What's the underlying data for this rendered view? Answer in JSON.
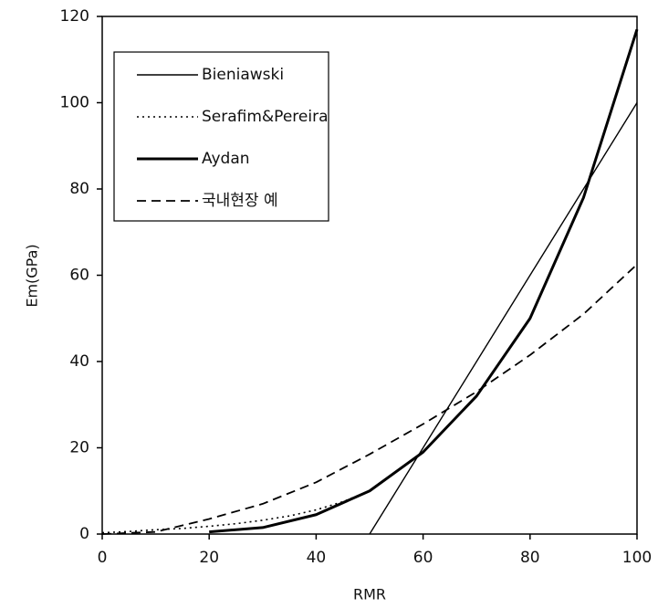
{
  "chart_data": {
    "type": "line",
    "xlabel": "RMR",
    "ylabel": "Em(GPa)",
    "xlim": [
      0,
      100
    ],
    "xticks": [
      0,
      20,
      40,
      60,
      80,
      100
    ],
    "ylim": [
      0,
      120
    ],
    "yticks": [
      0,
      20,
      40,
      60,
      80,
      100,
      120
    ],
    "legend": "upper left",
    "series": [
      {
        "name": "Bieniawski",
        "color": "#000000",
        "style": "solid",
        "width": 1.4,
        "x": [
          50,
          100
        ],
        "values": [
          0,
          100
        ]
      },
      {
        "name": "Serafim&Pereira",
        "color": "#000000",
        "style": "dotted",
        "width": 1.6,
        "x": [
          0,
          5,
          10,
          15,
          20,
          25,
          30,
          35,
          40,
          45,
          50
        ],
        "values": [
          0.3,
          0.6,
          1,
          1.3,
          1.8,
          2.4,
          3.2,
          4.2,
          5.6,
          7.5,
          10
        ]
      },
      {
        "name": "Aydan",
        "color": "#000000",
        "style": "solid",
        "width": 3,
        "x": [
          20,
          30,
          40,
          50,
          60,
          70,
          80,
          90,
          100
        ],
        "values": [
          0.5,
          1.5,
          4.5,
          10,
          19,
          32,
          50,
          78,
          117
        ]
      },
      {
        "name": "국내현장 예",
        "color": "#000000",
        "style": "dashed",
        "width": 1.8,
        "x": [
          0,
          10,
          15,
          20,
          30,
          40,
          50,
          60,
          70,
          80,
          90,
          100
        ],
        "values": [
          0,
          0.5,
          2,
          3.5,
          7,
          12,
          18.5,
          25.5,
          33,
          41.5,
          51,
          62.5
        ]
      }
    ]
  }
}
